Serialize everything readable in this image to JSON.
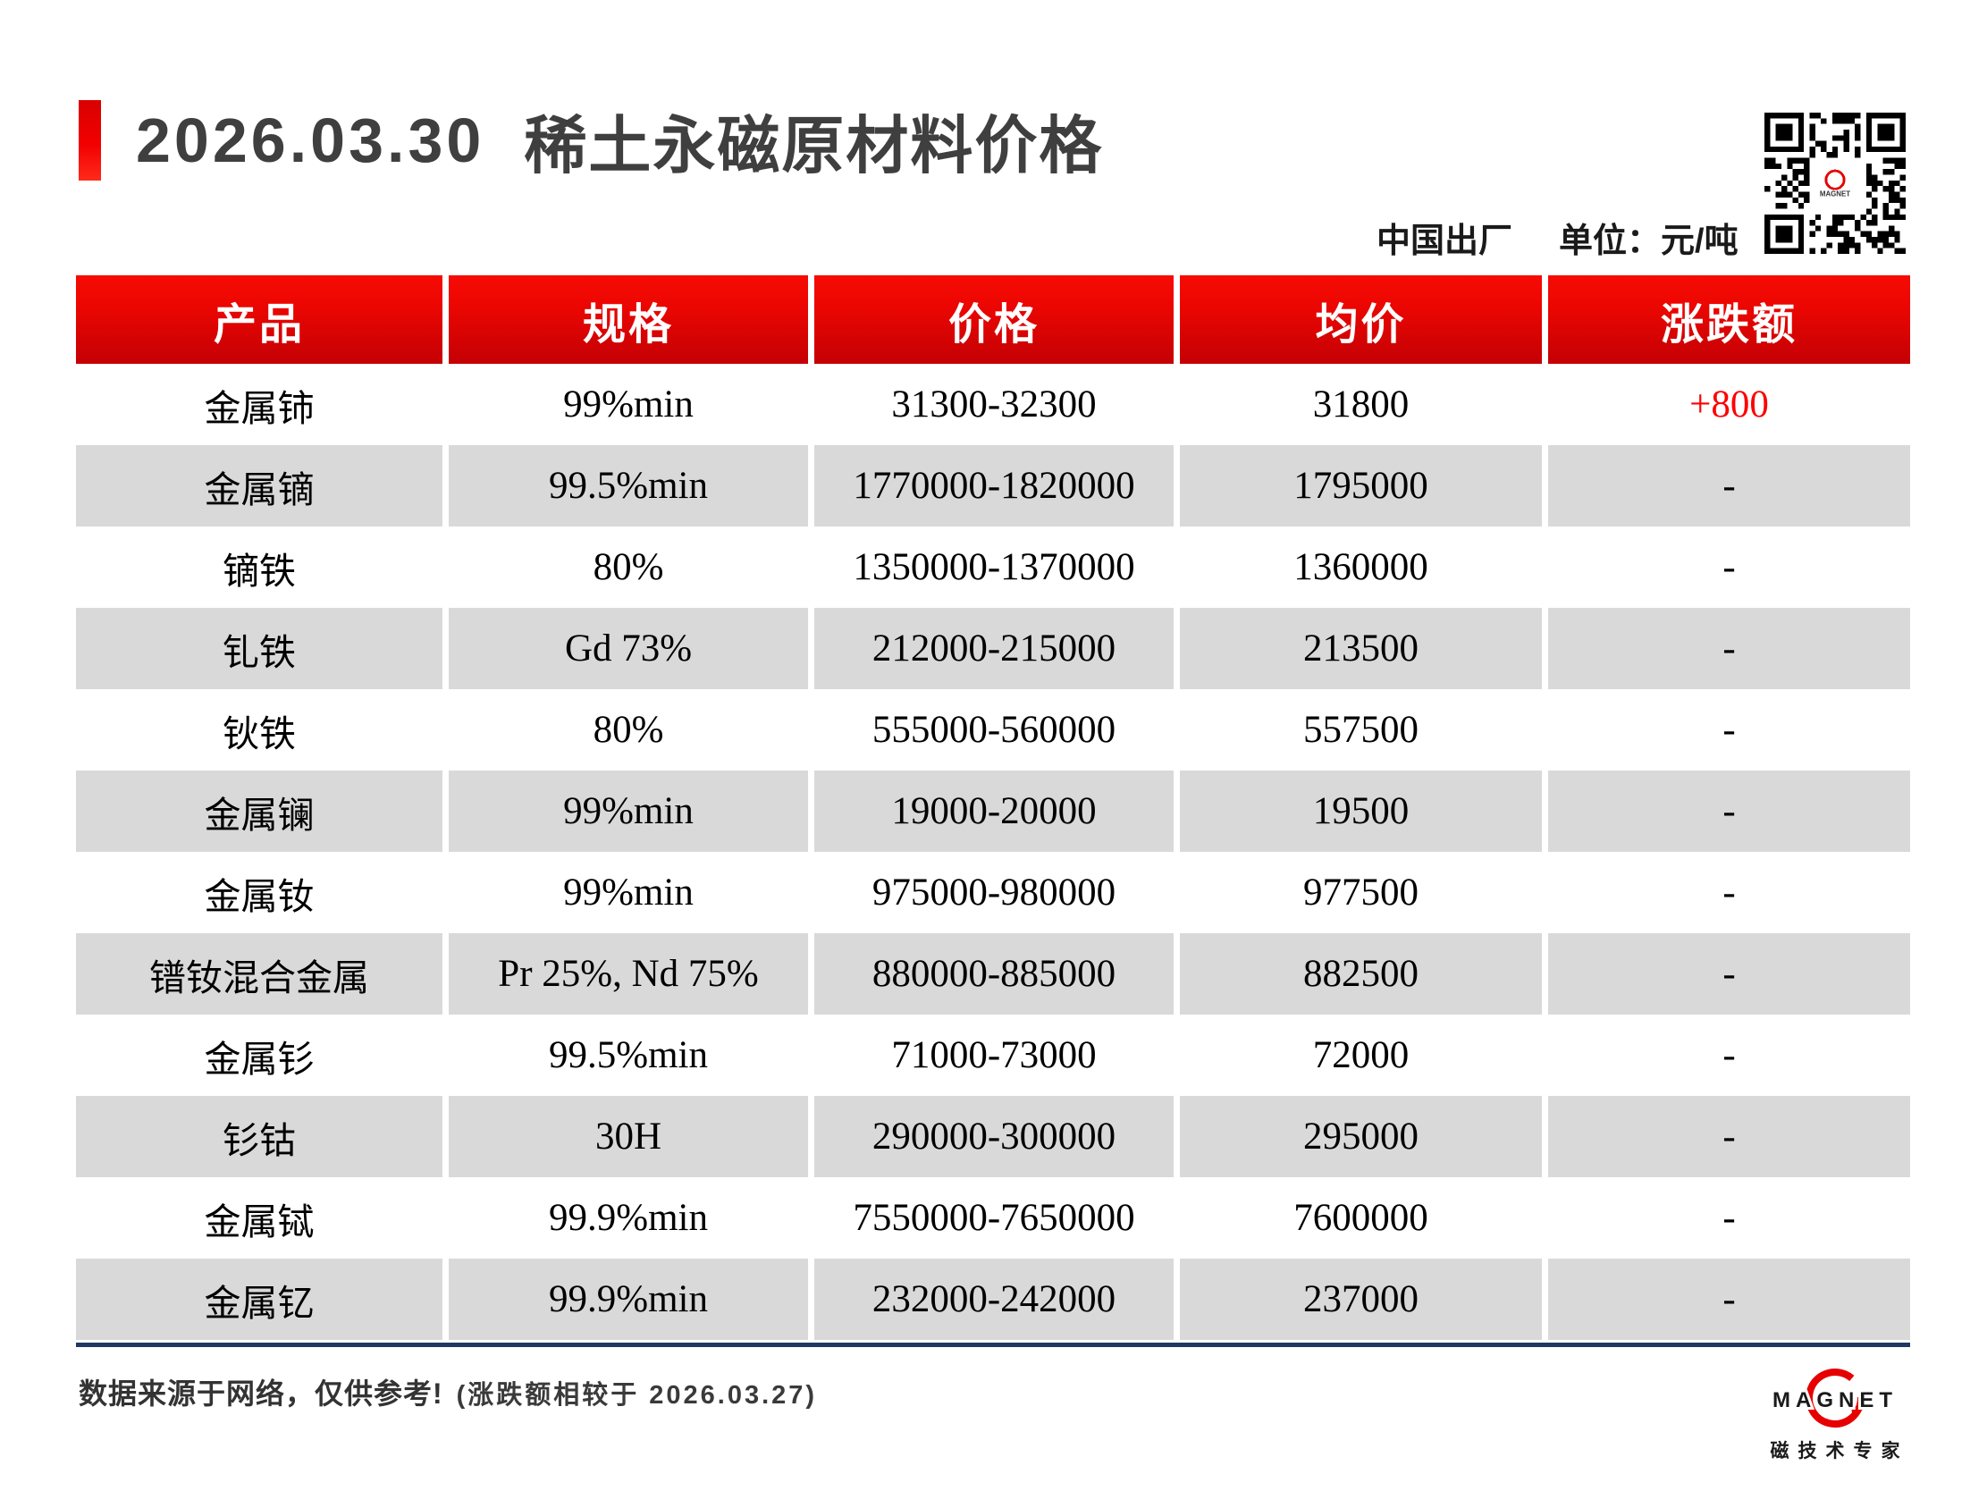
{
  "header": {
    "date": "2026.03.30",
    "title": "稀土永磁原材料价格",
    "origin": "中国出厂",
    "unit_label": "单位：元/吨"
  },
  "qr": {
    "label": "qr-code"
  },
  "table": {
    "columns": [
      "产品",
      "规格",
      "价格",
      "均价",
      "涨跌额"
    ],
    "rows": [
      {
        "product": "金属铈",
        "spec": "99%min",
        "price": "31300-32300",
        "avg": "31800",
        "change": "+800"
      },
      {
        "product": "金属镝",
        "spec": "99.5%min",
        "price": "1770000-1820000",
        "avg": "1795000",
        "change": "-"
      },
      {
        "product": "镝铁",
        "spec": "80%",
        "price": "1350000-1370000",
        "avg": "1360000",
        "change": "-"
      },
      {
        "product": "钆铁",
        "spec": "Gd 73%",
        "price": "212000-215000",
        "avg": "213500",
        "change": "-"
      },
      {
        "product": "钬铁",
        "spec": "80%",
        "price": "555000-560000",
        "avg": "557500",
        "change": "-"
      },
      {
        "product": "金属镧",
        "spec": "99%min",
        "price": "19000-20000",
        "avg": "19500",
        "change": "-"
      },
      {
        "product": "金属钕",
        "spec": "99%min",
        "price": "975000-980000",
        "avg": "977500",
        "change": "-"
      },
      {
        "product": "镨钕混合金属",
        "spec": "Pr 25%, Nd 75%",
        "price": "880000-885000",
        "avg": "882500",
        "change": "-"
      },
      {
        "product": "金属钐",
        "spec": "99.5%min",
        "price": "71000-73000",
        "avg": "72000",
        "change": "-"
      },
      {
        "product": "钐钴",
        "spec": "30H",
        "price": "290000-300000",
        "avg": "295000",
        "change": "-"
      },
      {
        "product": "金属铽",
        "spec": "99.9%min",
        "price": "7550000-7650000",
        "avg": "7600000",
        "change": "-"
      },
      {
        "product": "金属钇",
        "spec": "99.9%min",
        "price": "232000-242000",
        "avg": "237000",
        "change": "-"
      }
    ]
  },
  "footer": {
    "note_bold": "数据来源于网络，仅供参考!",
    "note_rest": "(涨跌额相较于 2026.03.27)",
    "logo_text": "MAGNET",
    "logo_subtext": "磁技术专家"
  },
  "colors": {
    "header_red_top": "#f60b04",
    "header_red_bottom": "#c40004",
    "accent_red": "#e60000",
    "row_gray": "#d9d9d9",
    "divider_navy": "#1f3864",
    "change_red": "#fe0000",
    "title_gray": "#3f3f3f"
  }
}
